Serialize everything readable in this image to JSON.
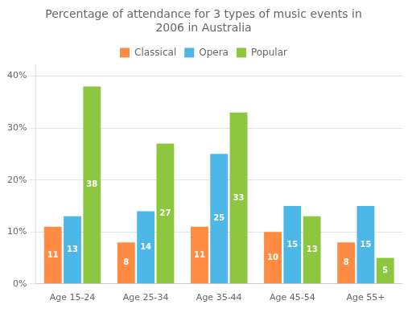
{
  "chart_data": {
    "type": "bar",
    "title": "Percentage of attendance for 3 types of music events in\n2006 in Australia",
    "categories": [
      "Age 15-24",
      "Age 25-34",
      "Age 35-44",
      "Age 45-54",
      "Age 55+"
    ],
    "series": [
      {
        "name": "Classical",
        "color": "#FF8C42",
        "values": [
          11,
          8,
          11,
          10,
          8
        ]
      },
      {
        "name": "Opera",
        "color": "#4DB8E8",
        "values": [
          13,
          14,
          25,
          15,
          15
        ]
      },
      {
        "name": "Popular",
        "color": "#8DC63F",
        "values": [
          38,
          27,
          33,
          13,
          5
        ]
      }
    ],
    "ylim": [
      0,
      42
    ],
    "yticks": [
      {
        "value": 0,
        "label": "0%"
      },
      {
        "value": 10,
        "label": "10%"
      },
      {
        "value": 20,
        "label": "20%"
      },
      {
        "value": 30,
        "label": "30%"
      },
      {
        "value": 40,
        "label": "40%"
      }
    ],
    "grid": true,
    "legend": "top",
    "data_labels": true
  }
}
